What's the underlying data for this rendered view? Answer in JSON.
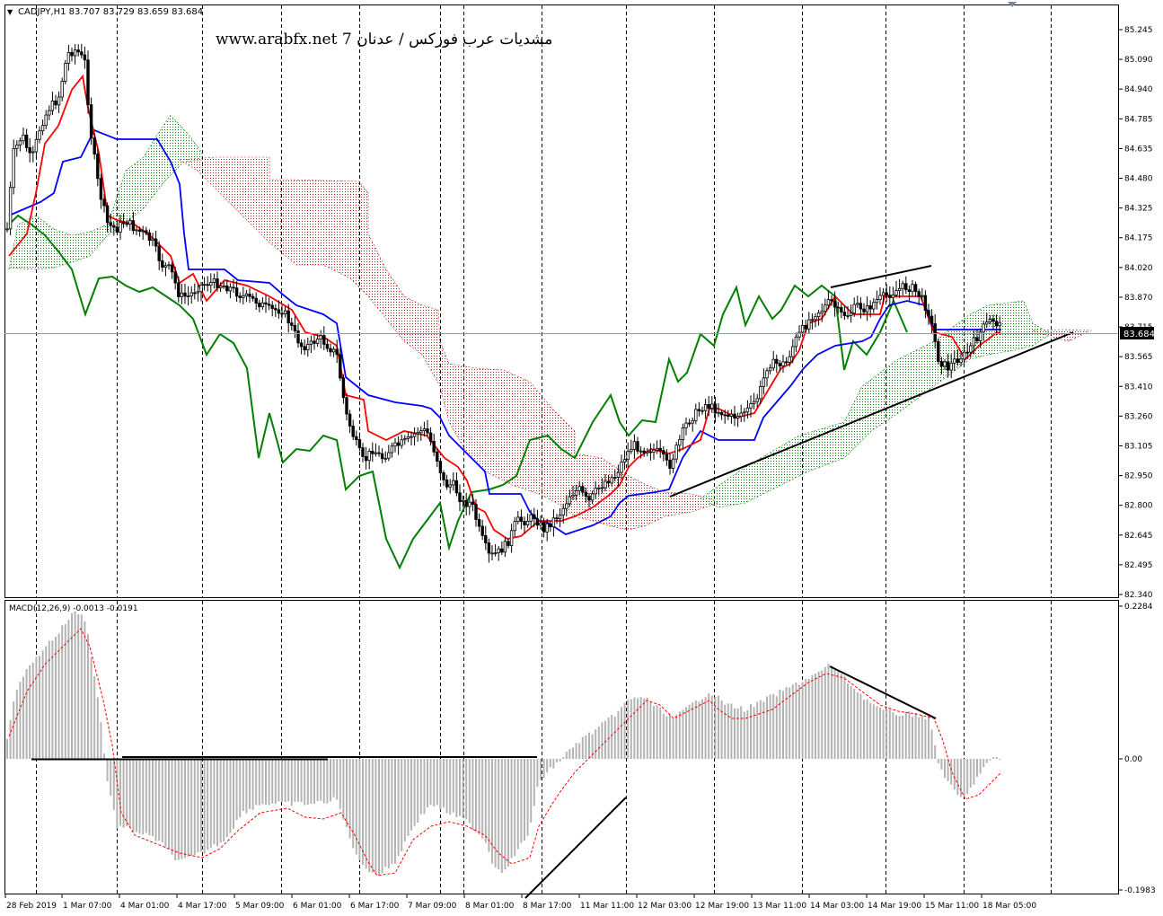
{
  "header": {
    "symbol_line": "CADJPY,H1  83.707 83.729 83.659 83.684",
    "watermark": "www.arabfx.net 7 مشديات عرب فوركس / عدنان"
  },
  "price_panel": {
    "current_price_label": "83.684",
    "current_price": 83.684,
    "y_ticks": [
      "85.245",
      "85.090",
      "84.940",
      "84.785",
      "84.635",
      "84.480",
      "84.325",
      "84.175",
      "84.020",
      "83.870",
      "83.715",
      "83.565",
      "83.410",
      "83.260",
      "83.105",
      "82.950",
      "82.800",
      "82.645",
      "82.495",
      "82.340"
    ]
  },
  "macd_panel": {
    "label": "MACD(12,26,9) -0.0013 -0.0191",
    "y_ticks": [
      "0.2284",
      "0.00",
      "-0.1983"
    ]
  },
  "x_axis": {
    "labels": [
      "28 Feb 2019",
      "1 Mar 07:00",
      "4 Mar 01:00",
      "4 Mar 17:00",
      "5 Mar 09:00",
      "6 Mar 01:00",
      "6 Mar 17:00",
      "7 Mar 09:00",
      "8 Mar 01:00",
      "8 Mar 17:00",
      "11 Mar 11:00",
      "12 Mar 03:00",
      "12 Mar 19:00",
      "13 Mar 11:00",
      "14 Mar 03:00",
      "14 Mar 19:00",
      "15 Mar 11:00",
      "18 Mar 05:00"
    ]
  },
  "colors": {
    "background": "#ffffff",
    "tenkan": "#ff0000",
    "kijun": "#0000ff",
    "chikou": "#008000",
    "cloud_bull": "#008000",
    "cloud_bear": "#b22222",
    "macd_hist": "#b4b4b4",
    "macd_signal": "#ff0000",
    "trendline": "#000000"
  },
  "chart_data": [
    {
      "type": "line",
      "title": "CADJPY,H1",
      "ylim": [
        82.34,
        85.3
      ],
      "series": [
        {
          "name": "CADJPY",
          "x": [
            "28 Feb 2019",
            "1 Mar 07:00",
            "4 Mar 01:00",
            "4 Mar 17:00",
            "5 Mar 09:00",
            "6 Mar 01:00",
            "6 Mar 17:00",
            "7 Mar 09:00",
            "8 Mar 01:00",
            "8 Mar 17:00",
            "11 Mar 11:00",
            "12 Mar 03:00",
            "12 Mar 19:00",
            "13 Mar 11:00",
            "14 Mar 03:00",
            "14 Mar 19:00",
            "15 Mar 11:00",
            "18 Mar 05:00"
          ],
          "values": [
            84.0,
            84.95,
            84.25,
            83.9,
            83.85,
            83.65,
            83.1,
            83.15,
            82.55,
            82.75,
            82.9,
            83.05,
            83.3,
            83.5,
            83.85,
            83.95,
            83.55,
            83.75
          ]
        }
      ]
    },
    {
      "type": "bar",
      "title": "MACD(12,26,9)",
      "ylim": [
        -0.1983,
        0.2284
      ],
      "categories": [
        "28 Feb 2019",
        "1 Mar 07:00",
        "4 Mar 01:00",
        "4 Mar 17:00",
        "5 Mar 09:00",
        "6 Mar 01:00",
        "6 Mar 17:00",
        "7 Mar 09:00",
        "8 Mar 01:00",
        "8 Mar 17:00",
        "11 Mar 11:00",
        "12 Mar 03:00",
        "12 Mar 19:00",
        "13 Mar 11:00",
        "14 Mar 03:00",
        "14 Mar 19:00",
        "15 Mar 11:00",
        "18 Mar 05:00"
      ],
      "series": [
        {
          "name": "MACD",
          "values": [
            0.12,
            0.22,
            -0.04,
            -0.1,
            -0.07,
            -0.05,
            -0.13,
            -0.07,
            -0.1,
            -0.02,
            0.04,
            0.08,
            0.09,
            0.08,
            0.12,
            0.05,
            -0.05,
            0.0
          ]
        }
      ]
    }
  ]
}
